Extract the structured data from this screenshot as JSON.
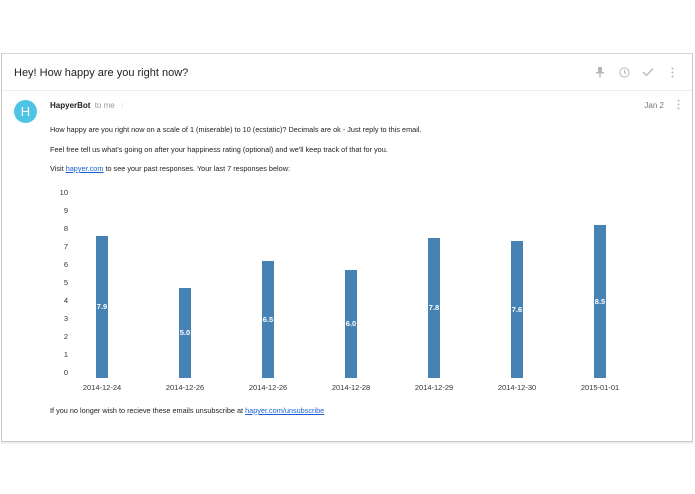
{
  "email": {
    "subject": "Hey! How happy are you right now?",
    "toolbar_icons": [
      "pin-icon",
      "clock-icon",
      "check-icon",
      "more-vert-icon"
    ],
    "sender": {
      "avatar_letter": "H",
      "avatar_color": "#4fc3e3",
      "name": "HapyerBot",
      "recipient": "to me",
      "date": "Jan 2"
    },
    "body": {
      "line1": "How happy are you right now on a scale of 1 (miserable) to 10 (ecstatic)? Decimals are ok - Just reply to this email.",
      "line2": "Feel free tell us what's going on after your happiness rating (optional) and we'll keep track of that for you.",
      "line3_prefix": "Visit ",
      "line3_link": "hapyer.com",
      "line3_suffix": " to see your past responses. Your last 7 responses below:",
      "footer_prefix": "If you no longer wish to recieve these emails unsubscribe at ",
      "footer_link": "hapyer.com/unsubscribe"
    }
  },
  "chart_data": {
    "type": "bar",
    "title": "",
    "xlabel": "",
    "ylabel": "",
    "ylim": [
      0,
      10
    ],
    "yticks": [
      "0",
      "1",
      "2",
      "3",
      "4",
      "5",
      "6",
      "7",
      "8",
      "9",
      "10"
    ],
    "categories": [
      "2014-12-24",
      "2014-12-26",
      "2014-12-26",
      "2014-12-28",
      "2014-12-29",
      "2014-12-30",
      "2015-01-01"
    ],
    "values": [
      7.9,
      5.0,
      6.5,
      6.0,
      7.8,
      7.6,
      8.5
    ],
    "labels": [
      "7.9",
      "5.0",
      "6.5",
      "6.0",
      "7.8",
      "7.6",
      "8.5"
    ],
    "bar_color": "#4682b4",
    "grid": false,
    "legend": null
  }
}
